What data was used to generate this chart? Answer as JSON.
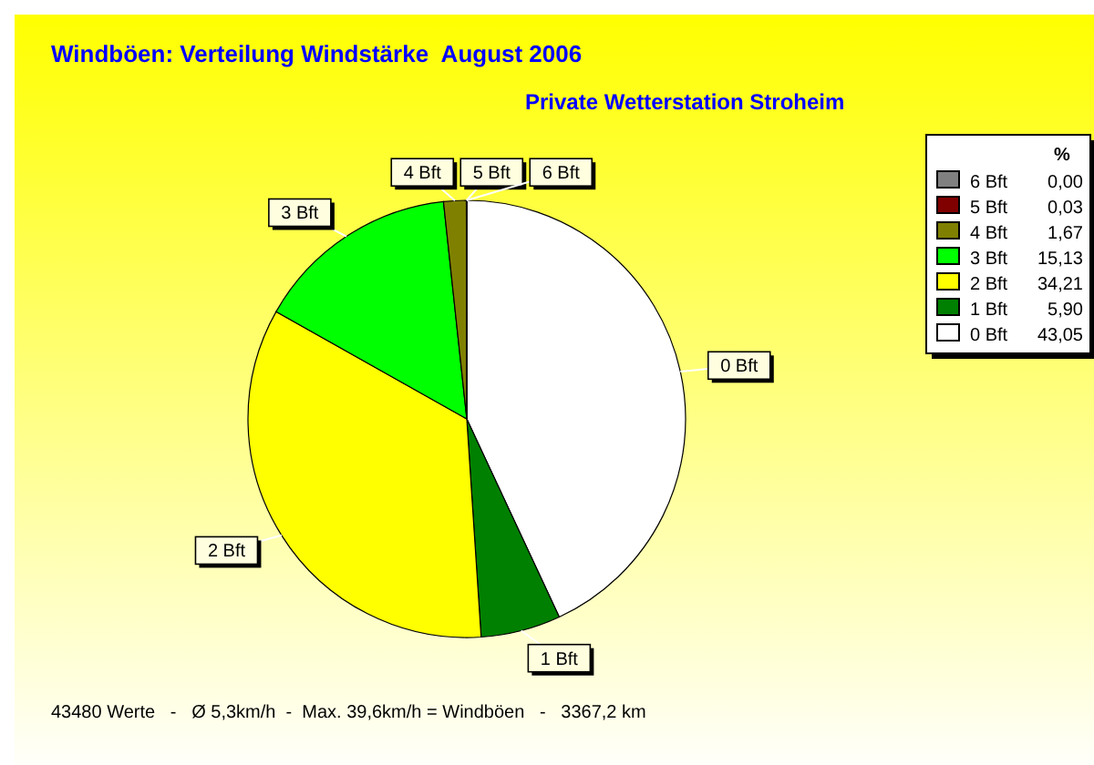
{
  "chart_data": {
    "type": "pie",
    "title": "Windböen: Verteilung Windstärke  August 2006",
    "subtitle": "Private Wetterstation Stroheim",
    "categories": [
      "0 Bft",
      "1 Bft",
      "2 Bft",
      "3 Bft",
      "4 Bft",
      "5 Bft",
      "6 Bft"
    ],
    "values": [
      43.05,
      5.9,
      34.21,
      15.13,
      1.67,
      0.03,
      0.0
    ],
    "value_labels": [
      "43,05",
      "5,90",
      "34,21",
      "15,13",
      "1,67",
      "0,03",
      "0,00"
    ],
    "colors": [
      "#ffffff",
      "#008000",
      "#ffff00",
      "#00ff00",
      "#808000",
      "#800000",
      "#808080"
    ],
    "legend_title": "%",
    "legend": "top right",
    "annotations": [
      "43480 Werte   -   Ø 5,3km/h  -  Max. 39,6km/h = Windböen   -   3367,2 km"
    ]
  }
}
